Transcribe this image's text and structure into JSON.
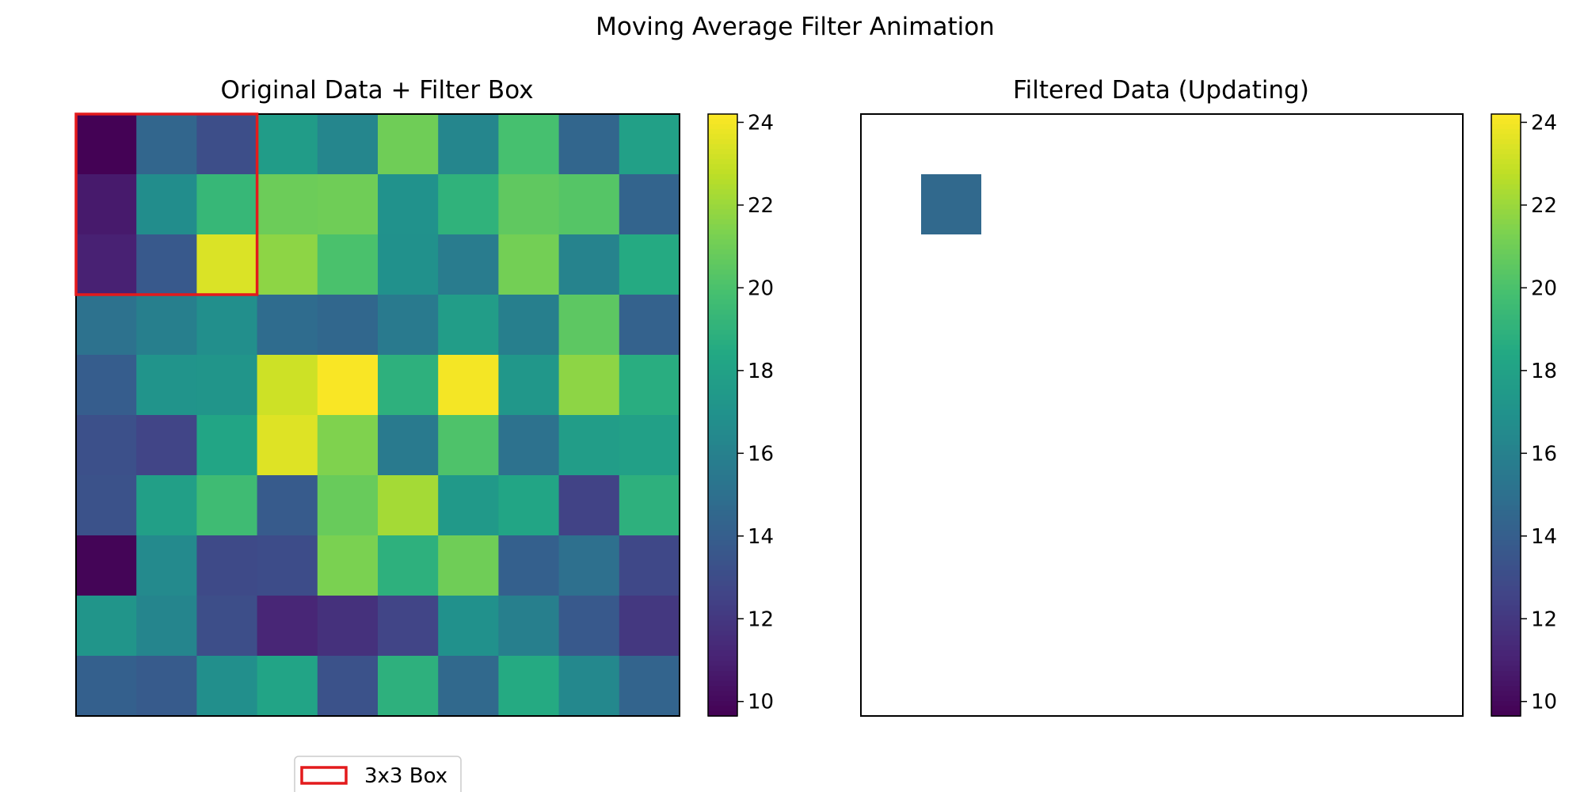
{
  "figure": {
    "title": "Moving Average Filter Animation"
  },
  "chart_data": [
    {
      "type": "heatmap",
      "title": "Original Data + Filter Box",
      "colormap": "viridis",
      "rows": 10,
      "cols": 10,
      "values": [
        [
          9.7,
          14.4,
          13.1,
          17.6,
          16.3,
          21.0,
          16.3,
          19.9,
          14.4,
          17.9
        ],
        [
          10.7,
          16.7,
          19.3,
          20.9,
          21.0,
          17.0,
          19.0,
          20.6,
          20.3,
          14.3
        ],
        [
          11.0,
          13.7,
          23.4,
          21.7,
          20.0,
          16.9,
          15.7,
          21.1,
          16.1,
          18.5
        ],
        [
          15.1,
          15.9,
          16.8,
          14.8,
          14.5,
          15.6,
          17.7,
          15.9,
          20.5,
          14.2
        ],
        [
          13.9,
          17.1,
          17.2,
          23.1,
          24.1,
          18.9,
          24.0,
          17.3,
          21.7,
          18.7
        ],
        [
          13.2,
          12.6,
          18.2,
          23.5,
          21.4,
          15.6,
          20.1,
          15.1,
          17.7,
          17.9
        ],
        [
          13.3,
          17.8,
          19.6,
          13.8,
          20.8,
          22.2,
          17.4,
          18.2,
          12.5,
          18.9
        ],
        [
          9.8,
          16.5,
          12.9,
          13.0,
          21.3,
          18.9,
          21.0,
          14.1,
          15.0,
          12.8
        ],
        [
          17.2,
          16.2,
          13.1,
          11.2,
          11.7,
          12.6,
          16.9,
          15.9,
          13.7,
          12.0
        ],
        [
          14.1,
          13.8,
          16.8,
          18.1,
          13.3,
          18.9,
          14.6,
          18.5,
          16.4,
          14.3
        ]
      ],
      "color_range": [
        9.65,
        24.2
      ],
      "colorbar_ticks": [
        "10",
        "12",
        "14",
        "16",
        "18",
        "20",
        "22",
        "24"
      ],
      "filter_box": {
        "label": "3x3 Box",
        "row_start": 0,
        "col_start": 0,
        "size": 3,
        "color": "#e31a1c"
      },
      "legend": {
        "placement": "below",
        "entries": [
          "3x3 Box"
        ]
      }
    },
    {
      "type": "heatmap",
      "title": "Filtered Data (Updating)",
      "colormap": "viridis",
      "rows": 10,
      "cols": 10,
      "color_range": [
        9.65,
        24.2
      ],
      "colorbar_ticks": [
        "10",
        "12",
        "14",
        "16",
        "18",
        "20",
        "22",
        "24"
      ],
      "filled_cells": [
        {
          "row": 1,
          "col": 1,
          "value": 14.6
        }
      ]
    }
  ]
}
